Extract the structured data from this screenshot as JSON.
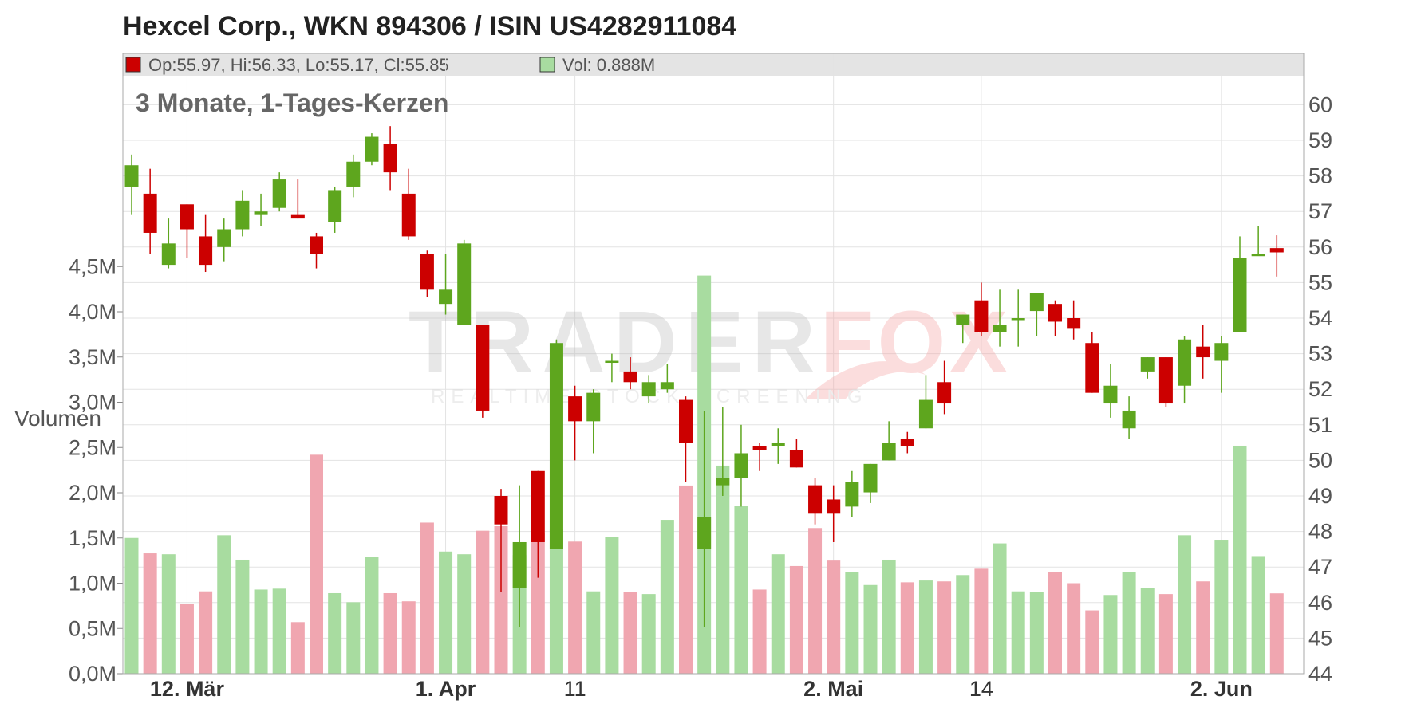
{
  "chart_data": {
    "type": "candlestick",
    "title": "Hexcel Corp., WKN 894306 / ISIN US4282911084",
    "subtitle": "3 Monate, 1-Tages-Kerzen",
    "ohlc_label": "Op:55.97, Hi:56.33, Lo:55.17, Cl:55.85",
    "volume_label": "Vol: 0.888M",
    "volume_axis_label": "Volumen",
    "watermark": {
      "brand_part1": "TRADER",
      "brand_part2": "FOX",
      "tagline": "REALTIME STOCK SCREENING"
    },
    "colors": {
      "up": "#5ea61e",
      "down": "#cc0000",
      "up_volume": "#a8dca0",
      "down_volume": "#f0a6b0",
      "grid": "#e3e3e3",
      "header_bg": "#e4e4e4"
    },
    "price_axis": {
      "min": 44,
      "max": 60.5,
      "ticks": [
        "60",
        "59",
        "58",
        "57",
        "56",
        "55",
        "54",
        "53",
        "52",
        "51",
        "50",
        "49",
        "48",
        "47",
        "46",
        "45",
        "44"
      ]
    },
    "volume_axis": {
      "min": 0,
      "max": 4.5,
      "ticks": [
        "4,5M",
        "4,0M",
        "3,5M",
        "3,0M",
        "2,5M",
        "2,0M",
        "1,5M",
        "1,0M",
        "0,5M",
        "0,0M"
      ]
    },
    "x_ticks": [
      {
        "label": "12. Mär",
        "index": 3,
        "bold": true
      },
      {
        "label": "1. Apr",
        "index": 17,
        "bold": true
      },
      {
        "label": "11",
        "index": 24,
        "bold": false
      },
      {
        "label": "2. Mai",
        "index": 38,
        "bold": true
      },
      {
        "label": "14",
        "index": 46,
        "bold": false
      },
      {
        "label": "2. Jun",
        "index": 59,
        "bold": true
      }
    ],
    "candles": [
      {
        "o": 57.7,
        "h": 58.6,
        "l": 56.9,
        "c": 58.3,
        "v": 1.5
      },
      {
        "o": 57.5,
        "h": 58.2,
        "l": 55.8,
        "c": 56.4,
        "v": 1.33
      },
      {
        "o": 55.5,
        "h": 56.8,
        "l": 55.4,
        "c": 56.1,
        "v": 1.32
      },
      {
        "o": 57.2,
        "h": 57.2,
        "l": 55.7,
        "c": 56.5,
        "v": 0.77
      },
      {
        "o": 56.3,
        "h": 56.9,
        "l": 55.3,
        "c": 55.5,
        "v": 0.91
      },
      {
        "o": 56.0,
        "h": 56.8,
        "l": 55.6,
        "c": 56.5,
        "v": 1.53
      },
      {
        "o": 56.5,
        "h": 57.6,
        "l": 56.3,
        "c": 57.3,
        "v": 1.26
      },
      {
        "o": 56.9,
        "h": 57.5,
        "l": 56.6,
        "c": 57.0,
        "v": 0.93
      },
      {
        "o": 57.1,
        "h": 58.1,
        "l": 57.0,
        "c": 57.9,
        "v": 0.94
      },
      {
        "o": 56.9,
        "h": 57.9,
        "l": 56.8,
        "c": 56.8,
        "v": 0.57
      },
      {
        "o": 56.3,
        "h": 56.4,
        "l": 55.4,
        "c": 55.8,
        "v": 2.42
      },
      {
        "o": 56.7,
        "h": 57.7,
        "l": 56.4,
        "c": 57.6,
        "v": 0.89
      },
      {
        "o": 57.7,
        "h": 58.6,
        "l": 57.4,
        "c": 58.4,
        "v": 0.79
      },
      {
        "o": 58.4,
        "h": 59.2,
        "l": 58.3,
        "c": 59.1,
        "v": 1.29
      },
      {
        "o": 58.9,
        "h": 59.4,
        "l": 57.6,
        "c": 58.1,
        "v": 0.89
      },
      {
        "o": 57.5,
        "h": 58.2,
        "l": 56.2,
        "c": 56.3,
        "v": 0.8
      },
      {
        "o": 55.8,
        "h": 55.9,
        "l": 54.6,
        "c": 54.8,
        "v": 1.67
      },
      {
        "o": 54.4,
        "h": 55.8,
        "l": 54.1,
        "c": 54.8,
        "v": 1.35
      },
      {
        "o": 53.8,
        "h": 56.2,
        "l": 53.8,
        "c": 56.1,
        "v": 1.32
      },
      {
        "o": 53.8,
        "h": 53.8,
        "l": 51.2,
        "c": 51.4,
        "v": 1.58
      },
      {
        "o": 49.0,
        "h": 49.2,
        "l": 46.3,
        "c": 48.2,
        "v": 1.63
      },
      {
        "o": 46.4,
        "h": 49.3,
        "l": 45.3,
        "c": 47.7,
        "v": 1.31
      },
      {
        "o": 49.7,
        "h": 49.7,
        "l": 46.7,
        "c": 47.7,
        "v": 1.55
      },
      {
        "o": 47.5,
        "h": 53.4,
        "l": 47.5,
        "c": 53.3,
        "v": 1.6
      },
      {
        "o": 51.8,
        "h": 52.1,
        "l": 50.0,
        "c": 51.1,
        "v": 1.46
      },
      {
        "o": 51.1,
        "h": 52.0,
        "l": 50.2,
        "c": 51.9,
        "v": 0.91
      },
      {
        "o": 52.8,
        "h": 53.0,
        "l": 52.2,
        "c": 52.8,
        "v": 1.51
      },
      {
        "o": 52.5,
        "h": 52.9,
        "l": 52.0,
        "c": 52.2,
        "v": 0.9
      },
      {
        "o": 51.8,
        "h": 52.4,
        "l": 51.6,
        "c": 52.2,
        "v": 0.88
      },
      {
        "o": 52.0,
        "h": 52.7,
        "l": 51.9,
        "c": 52.2,
        "v": 1.7
      },
      {
        "o": 51.7,
        "h": 51.8,
        "l": 49.4,
        "c": 50.5,
        "v": 2.08
      },
      {
        "o": 47.5,
        "h": 51.4,
        "l": 45.3,
        "c": 48.4,
        "v": 4.4
      },
      {
        "o": 49.3,
        "h": 51.5,
        "l": 49.0,
        "c": 49.5,
        "v": 2.3
      },
      {
        "o": 49.5,
        "h": 51.0,
        "l": 48.7,
        "c": 50.2,
        "v": 1.85
      },
      {
        "o": 50.4,
        "h": 50.5,
        "l": 49.7,
        "c": 50.3,
        "v": 0.93
      },
      {
        "o": 50.4,
        "h": 50.9,
        "l": 49.9,
        "c": 50.5,
        "v": 1.32
      },
      {
        "o": 50.3,
        "h": 50.6,
        "l": 49.8,
        "c": 49.8,
        "v": 1.19
      },
      {
        "o": 49.3,
        "h": 49.5,
        "l": 48.2,
        "c": 48.5,
        "v": 1.61
      },
      {
        "o": 48.9,
        "h": 49.3,
        "l": 47.7,
        "c": 48.5,
        "v": 1.25
      },
      {
        "o": 48.7,
        "h": 49.7,
        "l": 48.4,
        "c": 49.4,
        "v": 1.12
      },
      {
        "o": 49.1,
        "h": 49.9,
        "l": 48.8,
        "c": 49.9,
        "v": 0.98
      },
      {
        "o": 50.0,
        "h": 51.1,
        "l": 50.0,
        "c": 50.5,
        "v": 1.26
      },
      {
        "o": 50.6,
        "h": 50.8,
        "l": 50.2,
        "c": 50.4,
        "v": 1.01
      },
      {
        "o": 50.9,
        "h": 52.4,
        "l": 50.9,
        "c": 51.7,
        "v": 1.03
      },
      {
        "o": 52.2,
        "h": 52.8,
        "l": 51.3,
        "c": 51.6,
        "v": 1.02
      },
      {
        "o": 53.8,
        "h": 54.1,
        "l": 53.3,
        "c": 54.1,
        "v": 1.09
      },
      {
        "o": 54.5,
        "h": 55.0,
        "l": 53.5,
        "c": 53.6,
        "v": 1.16
      },
      {
        "o": 53.6,
        "h": 54.8,
        "l": 53.2,
        "c": 53.8,
        "v": 1.44
      },
      {
        "o": 54.0,
        "h": 54.8,
        "l": 53.2,
        "c": 54.0,
        "v": 0.91
      },
      {
        "o": 54.2,
        "h": 54.7,
        "l": 53.5,
        "c": 54.7,
        "v": 0.9
      },
      {
        "o": 54.4,
        "h": 54.5,
        "l": 53.5,
        "c": 53.9,
        "v": 1.12
      },
      {
        "o": 54.0,
        "h": 54.5,
        "l": 53.4,
        "c": 53.7,
        "v": 1.0
      },
      {
        "o": 53.3,
        "h": 53.6,
        "l": 51.9,
        "c": 51.9,
        "v": 0.7
      },
      {
        "o": 51.6,
        "h": 52.7,
        "l": 51.2,
        "c": 52.1,
        "v": 0.87
      },
      {
        "o": 50.9,
        "h": 51.8,
        "l": 50.6,
        "c": 51.4,
        "v": 1.12
      },
      {
        "o": 52.5,
        "h": 52.9,
        "l": 52.3,
        "c": 52.9,
        "v": 0.95
      },
      {
        "o": 52.9,
        "h": 52.9,
        "l": 51.5,
        "c": 51.6,
        "v": 0.88
      },
      {
        "o": 52.1,
        "h": 53.5,
        "l": 51.6,
        "c": 53.4,
        "v": 1.53
      },
      {
        "o": 53.2,
        "h": 53.8,
        "l": 52.3,
        "c": 52.9,
        "v": 1.02
      },
      {
        "o": 52.8,
        "h": 53.5,
        "l": 51.9,
        "c": 53.3,
        "v": 1.48
      },
      {
        "o": 53.6,
        "h": 56.3,
        "l": 53.6,
        "c": 55.7,
        "v": 2.52
      },
      {
        "o": 55.8,
        "h": 56.6,
        "l": 55.8,
        "c": 55.8,
        "v": 1.3
      },
      {
        "o": 55.97,
        "h": 56.33,
        "l": 55.17,
        "c": 55.85,
        "v": 0.888
      }
    ]
  }
}
